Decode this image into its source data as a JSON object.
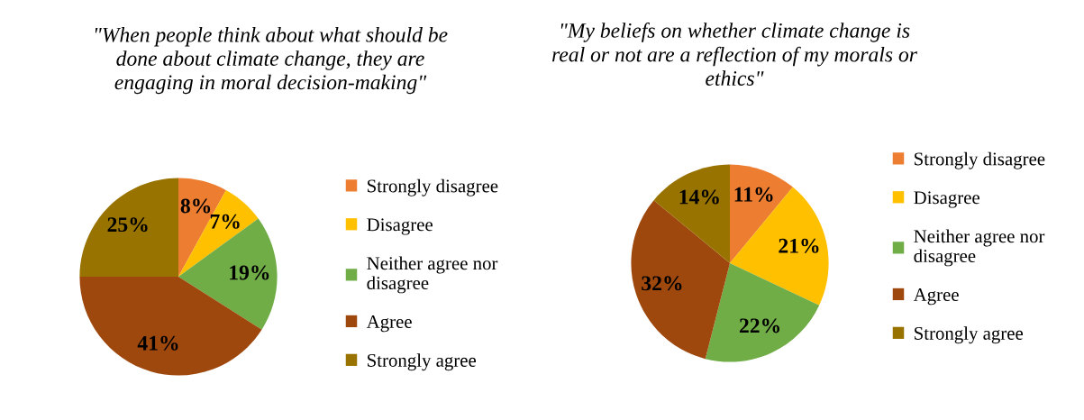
{
  "chart_data": [
    {
      "type": "pie",
      "title": "\"When people think about what should be\ndone about climate change, they are\nengaging in moral decision-making\"",
      "categories": [
        "Strongly disagree",
        "Disagree",
        "Neither agree nor disagree",
        "Agree",
        "Strongly agree"
      ],
      "values": [
        8,
        7,
        19,
        41,
        25
      ],
      "colors": [
        "#ed7d31",
        "#ffc000",
        "#70ad47",
        "#9e480e",
        "#997300"
      ],
      "value_labels": [
        "8%",
        "7%",
        "19%",
        "41%",
        "25%"
      ],
      "legend": "right"
    },
    {
      "type": "pie",
      "title": "\"My beliefs on whether climate change is\nreal or not are a reflection of my morals or\nethics\"",
      "categories": [
        "Strongly disagree",
        "Disagree",
        "Neither agree nor disagree",
        "Agree",
        "Strongly agree"
      ],
      "values": [
        11,
        21,
        22,
        32,
        14
      ],
      "colors": [
        "#ed7d31",
        "#ffc000",
        "#70ad47",
        "#9e480e",
        "#997300"
      ],
      "value_labels": [
        "11%",
        "21%",
        "22%",
        "32%",
        "14%"
      ],
      "legend": "right"
    }
  ]
}
